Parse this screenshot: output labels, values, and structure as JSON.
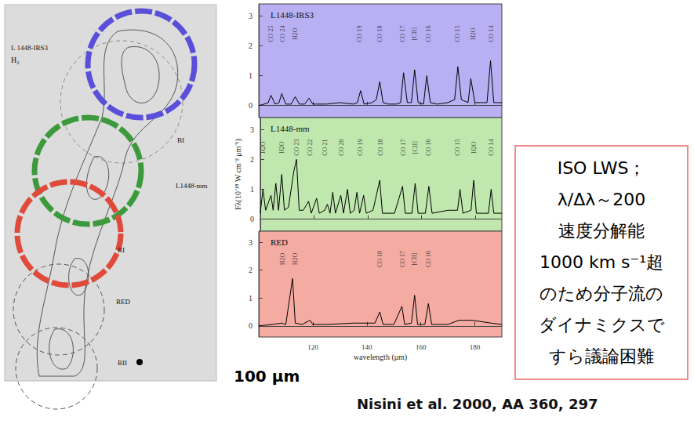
{
  "map": {
    "title": "L 1448-IRS3",
    "species": "H₂",
    "labels": [
      "BI",
      "L1448-mm",
      "RI",
      "RED",
      "RII"
    ]
  },
  "chart_data": [
    {
      "type": "line",
      "title": "L1448-IRS3",
      "color": "#000000",
      "tick_labels": "y",
      "grid": false,
      "x": [
        100,
        102,
        103.5,
        104.5,
        106,
        107.5,
        108.5,
        110,
        112,
        113.5,
        115,
        117,
        118.6,
        120,
        125,
        130,
        135,
        136.5,
        137.7,
        139,
        142,
        143.5,
        144.8,
        146,
        148,
        151,
        152.5,
        153.6,
        155,
        156.5,
        157.7,
        159,
        161,
        162.2,
        163.5,
        166,
        170,
        172.5,
        173.7,
        175,
        177.5,
        178.5,
        180,
        182,
        184.5,
        185.8,
        187,
        190
      ],
      "values": [
        0,
        0.05,
        0.1,
        0.35,
        0.05,
        0.1,
        0.4,
        0.05,
        0.05,
        0.3,
        0.05,
        0.05,
        0.25,
        0.05,
        0.05,
        0.1,
        0.05,
        0.1,
        0.5,
        0.05,
        0.1,
        0.2,
        0.8,
        0.1,
        0.05,
        0.05,
        0.1,
        1.1,
        0.1,
        0.1,
        1.2,
        0.1,
        0.05,
        1.0,
        0.1,
        0.05,
        0.1,
        0.2,
        1.3,
        0.2,
        0.1,
        0.9,
        0.1,
        0.1,
        0.1,
        1.5,
        0.1,
        0.1
      ],
      "line_labels": {
        "x": [
          104.5,
          108.8,
          113.5,
          137.2,
          144.8,
          153.3,
          157.7,
          162.8,
          173.6,
          179.5,
          186
        ],
        "labels": [
          "CO 25",
          "CO 24",
          "H2O",
          "CO 19",
          "CO 18",
          "CO 17",
          "[CII]",
          "CO 16",
          "CO 15",
          "H2O",
          "CO 14"
        ]
      },
      "xlim": [
        100,
        190
      ],
      "xticks": [
        120,
        140,
        160,
        180
      ],
      "ylim": [
        -0.4,
        3.4
      ],
      "yticks": [
        0,
        1,
        2,
        3
      ]
    },
    {
      "type": "line",
      "title": "L1448-mm",
      "color": "#000000",
      "tick_labels": "y",
      "grid": false,
      "ylabel": "Fλ(10⁻¹⁸ W cm⁻² μm⁻¹)",
      "x": [
        100,
        101,
        102,
        104,
        104.8,
        105.8,
        106.8,
        108,
        109,
        110.5,
        112.5,
        113.5,
        114.5,
        116,
        118,
        119,
        121,
        122,
        124,
        125,
        126,
        127,
        128,
        130,
        131,
        132.5,
        133.5,
        135,
        136,
        137,
        138.5,
        139.5,
        142,
        144.5,
        145.5,
        150,
        153,
        154,
        156.5,
        157.7,
        158.8,
        161.5,
        162.8,
        164,
        170,
        173.5,
        174.4,
        175.5,
        178.5,
        179.5,
        180.5,
        185,
        186,
        187,
        190
      ],
      "values": [
        0.2,
        1.0,
        0.3,
        0.8,
        0.3,
        1.2,
        0.3,
        1.5,
        0.3,
        0.4,
        1.6,
        2.0,
        0.3,
        0.3,
        0.6,
        0.2,
        0.7,
        0.2,
        0.3,
        0.5,
        0.2,
        0.9,
        0.2,
        0.8,
        0.2,
        1.0,
        0.2,
        0.3,
        0.9,
        0.2,
        0.8,
        0.2,
        0.3,
        1.3,
        0.2,
        0.2,
        1.1,
        0.2,
        0.2,
        1.2,
        0.2,
        0.2,
        1.1,
        0.2,
        0.3,
        0.3,
        1.0,
        0.2,
        0.3,
        1.3,
        0.2,
        0.2,
        1.0,
        0.2,
        0.2
      ],
      "line_labels": {
        "x": [
          101,
          108,
          113.5,
          118.6,
          124.2,
          130.4,
          137.2,
          144.8,
          153.3,
          157.7,
          162.8,
          173.6,
          179.5,
          186
        ],
        "labels": [
          "H2O",
          "H2O",
          "CO 23",
          "CO 22",
          "CO 21",
          "CO 20",
          "CO 19",
          "CO 18",
          "CO 17",
          "[CII]",
          "CO 16",
          "CO 15",
          "H2O",
          "CO 14"
        ]
      },
      "xlim": [
        100,
        190
      ],
      "xticks": [
        120,
        140,
        160,
        180
      ],
      "ylim": [
        -0.4,
        3.4
      ],
      "yticks": [
        0,
        1,
        2,
        3
      ]
    },
    {
      "type": "line",
      "title": "RED",
      "color": "#000000",
      "grid": false,
      "xlabel": "wavelength (μm)",
      "x": [
        100,
        105,
        108.5,
        110,
        112.5,
        113.5,
        116,
        119,
        120,
        125,
        135,
        143,
        144.8,
        146,
        150,
        153,
        154,
        156.5,
        157.7,
        158.8,
        161.5,
        162.8,
        164,
        170,
        174,
        179,
        186,
        190
      ],
      "values": [
        0,
        0.05,
        0.1,
        0.05,
        1.7,
        0.1,
        0.05,
        0.2,
        0.05,
        0.05,
        0.1,
        0.1,
        0.5,
        0.05,
        0.05,
        0.7,
        0.05,
        0.1,
        1.1,
        0.05,
        0.05,
        0.8,
        0.05,
        0.05,
        0.2,
        0.2,
        0.1,
        0.05
      ],
      "line_labels": {
        "x": [
          108.8,
          113.5,
          144.8,
          153.3,
          157.7,
          162.8
        ],
        "labels": [
          "H2O",
          "H2O",
          "CO 18",
          "CO 17",
          "[CII]",
          "CO 16"
        ]
      },
      "xlim": [
        100,
        190
      ],
      "xticks": [
        120,
        140,
        160,
        180
      ],
      "ylim": [
        -0.4,
        3.4
      ],
      "yticks": [
        0,
        1,
        2,
        3
      ]
    }
  ],
  "axis_note": "100 μm",
  "note": [
    "ISO LWS；",
    "λ/Δλ～200",
    "速度分解能",
    "1000 km s⁻¹超",
    "のため分子流の",
    "ダイナミクスで",
    "すら議論困難"
  ],
  "citation": "Nisini et al. 2000, AA 360, 297"
}
